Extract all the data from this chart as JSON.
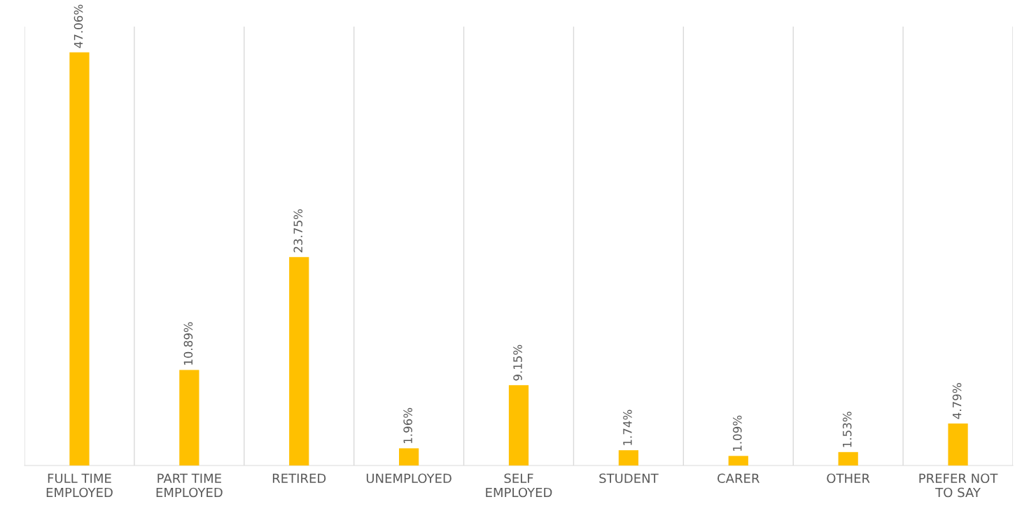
{
  "chart_data": {
    "type": "bar",
    "categories": [
      "FULL TIME\nEMPLOYED",
      "PART TIME\nEMPLOYED",
      "RETIRED",
      "UNEMPLOYED",
      "SELF\nEMPLOYED",
      "STUDENT",
      "CARER",
      "OTHER",
      "PREFER NOT\nTO SAY"
    ],
    "values": [
      47.06,
      10.89,
      23.75,
      1.96,
      9.15,
      1.74,
      1.09,
      1.53,
      4.79
    ],
    "value_labels": [
      "47.06%",
      "10.89%",
      "23.75%",
      "1.96%",
      "9.15%",
      "1.74%",
      "1.09%",
      "1.53%",
      "4.79%"
    ],
    "color": "#ffc000",
    "ylim": [
      0,
      50
    ],
    "tick_labels": "x",
    "grid": "x"
  }
}
